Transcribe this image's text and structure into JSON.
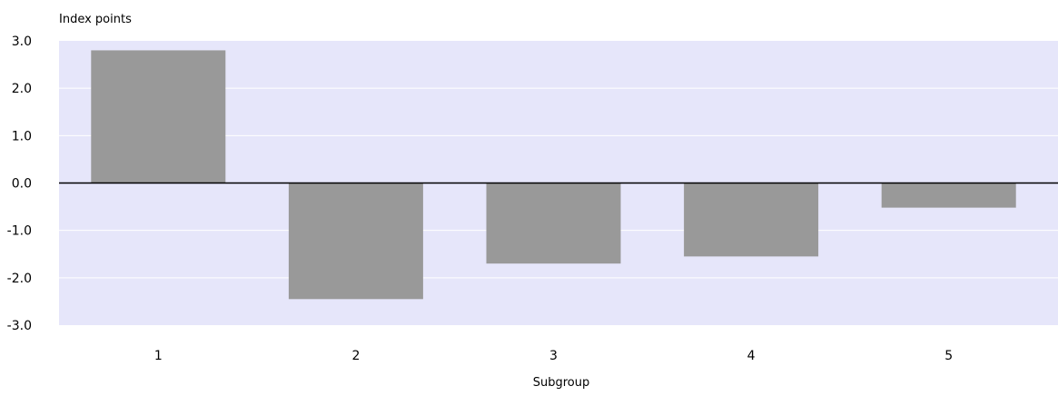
{
  "chart_data": {
    "type": "bar",
    "title": "",
    "ylabel": "Index points",
    "xlabel": "Subgroup",
    "categories": [
      "1",
      "2",
      "3",
      "4",
      "5"
    ],
    "values": [
      2.8,
      -2.45,
      -1.7,
      -1.55,
      -0.52
    ],
    "ylim": [
      -3.0,
      3.0
    ],
    "yticks": [
      "3.0",
      "2.0",
      "1.0",
      "0.0",
      "-1.0",
      "-2.0",
      "-3.0"
    ],
    "ytick_values": [
      3.0,
      2.0,
      1.0,
      0.0,
      -1.0,
      -2.0,
      -3.0
    ],
    "grid": true,
    "legend": "none",
    "colors": {
      "plot_background": "#e6e6fa",
      "bar": "#999999",
      "gridline": "#ffffff",
      "zero_line": "#000000"
    }
  }
}
